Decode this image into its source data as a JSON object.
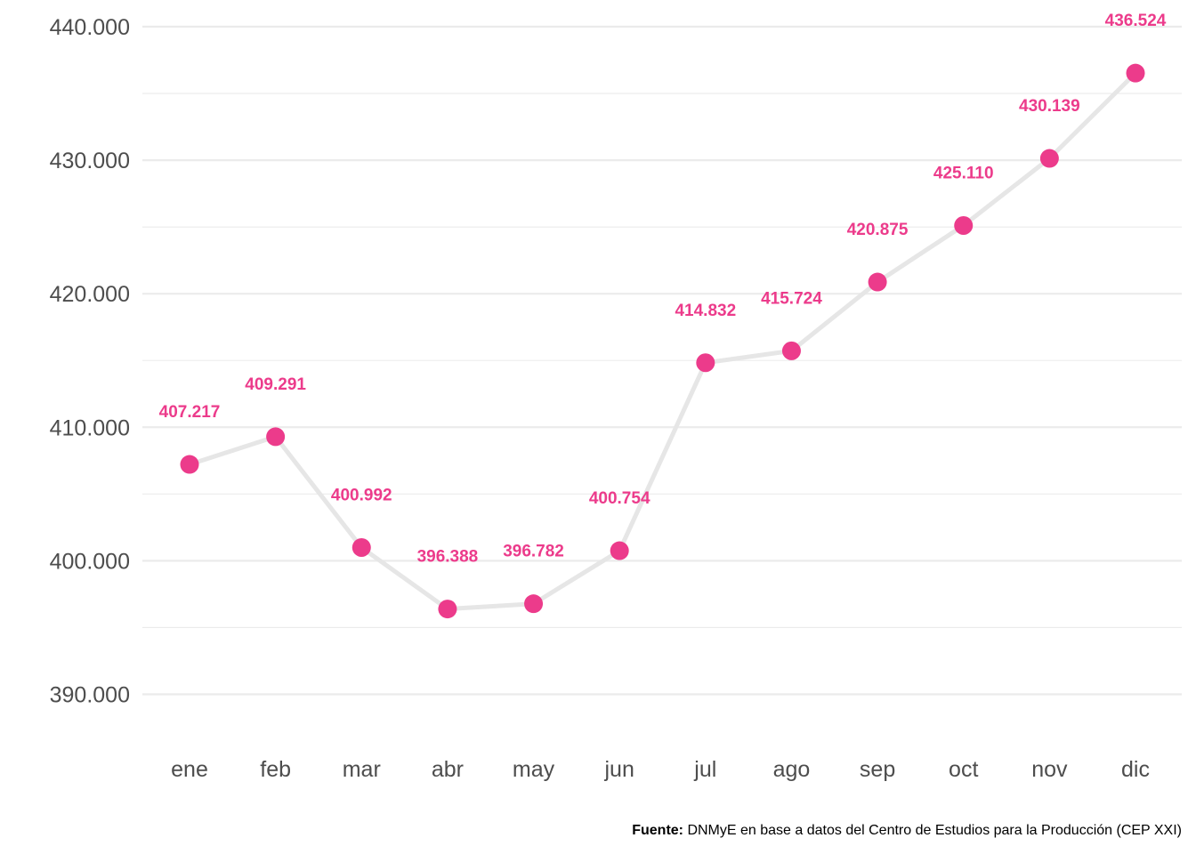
{
  "chart_data": {
    "type": "line",
    "categories": [
      "ene",
      "feb",
      "mar",
      "abr",
      "may",
      "jun",
      "jul",
      "ago",
      "sep",
      "oct",
      "nov",
      "dic"
    ],
    "values": [
      407217,
      409291,
      400992,
      396388,
      396782,
      400754,
      414832,
      415724,
      420875,
      425110,
      430139,
      436524
    ],
    "value_labels": [
      "407.217",
      "409.291",
      "400.992",
      "396.388",
      "396.782",
      "400.754",
      "414.832",
      "415.724",
      "420.875",
      "425.110",
      "430.139",
      "436.524"
    ],
    "y_ticks": [
      390000,
      400000,
      410000,
      420000,
      430000,
      440000
    ],
    "y_tick_labels": [
      "390.000",
      "400.000",
      "410.000",
      "420.000",
      "430.000",
      "440.000"
    ],
    "ylim": [
      386500,
      441000
    ],
    "grid": true,
    "legend": "none"
  },
  "colors": {
    "point": "#ec3b8b",
    "label": "#ec3b8b",
    "line": "#e6e6e6",
    "grid": "#ebebeb"
  },
  "caption": {
    "bold": "Fuente:",
    "text": " DNMyE en base a datos del Centro de Estudios para la Producción (CEP XXI)"
  }
}
